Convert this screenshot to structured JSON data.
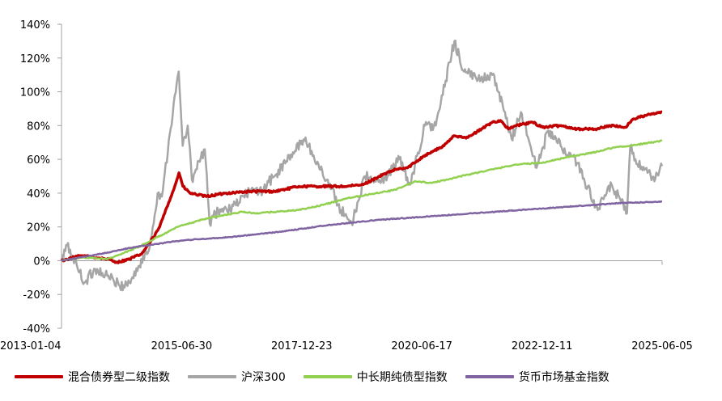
{
  "chart_data": {
    "type": "line",
    "title": "",
    "xlabel": "",
    "ylabel": "",
    "x_ticks": [
      "2013-01-04",
      "2015-06-30",
      "2017-12-23",
      "2020-06-17",
      "2022-12-11",
      "2025-06-05"
    ],
    "y_ticks": [
      "140%",
      "120%",
      "100%",
      "80%",
      "60%",
      "40%",
      "20%",
      "0%",
      "-20%",
      "-40%"
    ],
    "ylim": [
      -40,
      140
    ],
    "xlim": [
      "2013-01-04",
      "2025-06-05"
    ],
    "grid": false,
    "legend_position": "bottom",
    "series": [
      {
        "name": "混合债券型二级指数",
        "color": "#C00000",
        "points": [
          [
            "2013-01-04",
            0
          ],
          [
            "2013-06-01",
            3
          ],
          [
            "2013-09-01",
            2
          ],
          [
            "2013-12-15",
            1
          ],
          [
            "2014-03-01",
            -1
          ],
          [
            "2014-06-01",
            1
          ],
          [
            "2014-09-01",
            4
          ],
          [
            "2014-12-01",
            14
          ],
          [
            "2015-01-15",
            20
          ],
          [
            "2015-03-01",
            30
          ],
          [
            "2015-05-01",
            42
          ],
          [
            "2015-06-10",
            52
          ],
          [
            "2015-07-10",
            44
          ],
          [
            "2015-09-01",
            40
          ],
          [
            "2016-01-01",
            38
          ],
          [
            "2016-06-01",
            40
          ],
          [
            "2016-12-01",
            41
          ],
          [
            "2017-06-01",
            41
          ],
          [
            "2017-12-01",
            44
          ],
          [
            "2018-06-01",
            44
          ],
          [
            "2018-12-01",
            44
          ],
          [
            "2019-04-01",
            45
          ],
          [
            "2019-08-01",
            50
          ],
          [
            "2019-12-01",
            54
          ],
          [
            "2020-03-01",
            55
          ],
          [
            "2020-07-01",
            62
          ],
          [
            "2020-12-01",
            68
          ],
          [
            "2021-02-15",
            74
          ],
          [
            "2021-06-01",
            73
          ],
          [
            "2021-12-01",
            82
          ],
          [
            "2022-02-01",
            83
          ],
          [
            "2022-04-01",
            78
          ],
          [
            "2022-06-01",
            80
          ],
          [
            "2022-10-01",
            82
          ],
          [
            "2022-12-15",
            79
          ],
          [
            "2023-05-01",
            80
          ],
          [
            "2023-09-01",
            78
          ],
          [
            "2024-02-01",
            78
          ],
          [
            "2024-05-01",
            80
          ],
          [
            "2024-09-01",
            79
          ],
          [
            "2024-11-01",
            84
          ],
          [
            "2025-02-01",
            86
          ],
          [
            "2025-06-05",
            88
          ]
        ]
      },
      {
        "name": "沪深300",
        "color": "#A6A6A6",
        "points": [
          [
            "2013-01-04",
            0
          ],
          [
            "2013-02-15",
            9
          ],
          [
            "2013-04-01",
            2
          ],
          [
            "2013-06-25",
            -13
          ],
          [
            "2013-09-15",
            -5
          ],
          [
            "2013-12-01",
            -8
          ],
          [
            "2014-03-20",
            -15
          ],
          [
            "2014-06-01",
            -13
          ],
          [
            "2014-08-15",
            -3
          ],
          [
            "2014-11-01",
            8
          ],
          [
            "2014-12-31",
            40
          ],
          [
            "2015-02-01",
            38
          ],
          [
            "2015-04-01",
            75
          ],
          [
            "2015-06-08",
            112
          ],
          [
            "2015-07-08",
            68
          ],
          [
            "2015-08-15",
            80
          ],
          [
            "2015-09-15",
            48
          ],
          [
            "2015-12-22",
            66
          ],
          [
            "2016-01-28",
            22
          ],
          [
            "2016-04-01",
            30
          ],
          [
            "2016-07-01",
            30
          ],
          [
            "2016-11-30",
            42
          ],
          [
            "2017-02-01",
            40
          ],
          [
            "2017-06-01",
            50
          ],
          [
            "2018-01-20",
            73
          ],
          [
            "2018-03-15",
            62
          ],
          [
            "2018-07-01",
            48
          ],
          [
            "2018-10-15",
            30
          ],
          [
            "2019-01-03",
            22
          ],
          [
            "2019-04-15",
            50
          ],
          [
            "2019-08-10",
            46
          ],
          [
            "2019-12-31",
            60
          ],
          [
            "2020-03-20",
            45
          ],
          [
            "2020-07-10",
            80
          ],
          [
            "2020-10-01",
            80
          ],
          [
            "2021-02-18",
            130
          ],
          [
            "2021-05-01",
            112
          ],
          [
            "2021-08-01",
            108
          ],
          [
            "2021-12-01",
            110
          ],
          [
            "2022-01-15",
            100
          ],
          [
            "2022-04-26",
            72
          ],
          [
            "2022-07-05",
            88
          ],
          [
            "2022-10-31",
            55
          ],
          [
            "2023-01-27",
            77
          ],
          [
            "2023-05-01",
            68
          ],
          [
            "2023-09-01",
            58
          ],
          [
            "2024-02-05",
            30
          ],
          [
            "2024-05-20",
            45
          ],
          [
            "2024-09-13",
            28
          ],
          [
            "2024-10-08",
            68
          ],
          [
            "2024-12-01",
            57
          ],
          [
            "2025-02-15",
            52
          ],
          [
            "2025-04-08",
            47
          ],
          [
            "2025-06-05",
            56
          ]
        ]
      },
      {
        "name": "中长期纯债型指数",
        "color": "#92D050",
        "points": [
          [
            "2013-01-04",
            0
          ],
          [
            "2013-06-01",
            2
          ],
          [
            "2013-12-15",
            1
          ],
          [
            "2014-03-01",
            3
          ],
          [
            "2014-09-01",
            9
          ],
          [
            "2015-01-01",
            14
          ],
          [
            "2015-06-01",
            20
          ],
          [
            "2016-01-01",
            25
          ],
          [
            "2016-10-01",
            29
          ],
          [
            "2016-12-31",
            28
          ],
          [
            "2017-12-01",
            30
          ],
          [
            "2018-06-01",
            33
          ],
          [
            "2018-12-01",
            37
          ],
          [
            "2019-12-01",
            42
          ],
          [
            "2020-05-01",
            47
          ],
          [
            "2020-09-01",
            46
          ],
          [
            "2021-06-01",
            51
          ],
          [
            "2022-06-01",
            57
          ],
          [
            "2022-12-15",
            58
          ],
          [
            "2023-06-01",
            61
          ],
          [
            "2024-01-01",
            64
          ],
          [
            "2024-06-01",
            67
          ],
          [
            "2024-10-01",
            68
          ],
          [
            "2025-06-05",
            71
          ]
        ]
      },
      {
        "name": "货币市场基金指数",
        "color": "#8064A2",
        "points": [
          [
            "2013-01-04",
            0
          ],
          [
            "2013-06-01",
            2
          ],
          [
            "2014-01-01",
            5
          ],
          [
            "2014-07-01",
            8
          ],
          [
            "2015-01-01",
            10
          ],
          [
            "2015-07-01",
            12
          ],
          [
            "2016-07-01",
            14
          ],
          [
            "2017-07-01",
            17
          ],
          [
            "2018-07-01",
            21
          ],
          [
            "2019-07-01",
            24
          ],
          [
            "2020-07-01",
            26
          ],
          [
            "2021-07-01",
            28
          ],
          [
            "2022-07-01",
            30
          ],
          [
            "2023-07-01",
            32
          ],
          [
            "2024-07-01",
            34
          ],
          [
            "2025-06-05",
            35
          ]
        ]
      }
    ]
  }
}
